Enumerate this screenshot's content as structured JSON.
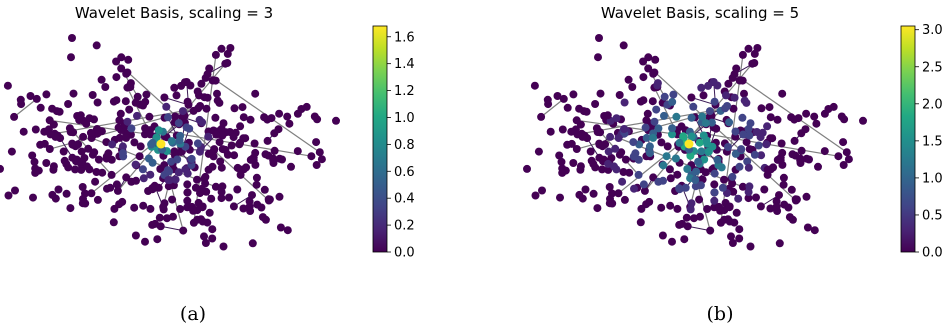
{
  "panels": [
    {
      "id": "a",
      "title": "Wavelet Basis, scaling = 3",
      "caption": "(a)",
      "colorbar": {
        "min": 0.0,
        "max": 1.68,
        "ticks": [
          "0.0",
          "0.2",
          "0.4",
          "0.6",
          "0.8",
          "1.0",
          "1.2",
          "1.4",
          "1.6"
        ]
      }
    },
    {
      "id": "b",
      "title": "Wavelet Basis, scaling = 5",
      "caption": "(b)",
      "colorbar": {
        "min": 0.0,
        "max": 3.05,
        "ticks": [
          "0.0",
          "0.5",
          "1.0",
          "1.5",
          "2.0",
          "2.5",
          "3.0"
        ]
      }
    }
  ],
  "colormap": [
    "#440154",
    "#482475",
    "#414487",
    "#355f8d",
    "#2a788e",
    "#21918c",
    "#22a884",
    "#44bf70",
    "#7ad151",
    "#bddf26",
    "#fde725"
  ],
  "edge_color": "#808080"
}
